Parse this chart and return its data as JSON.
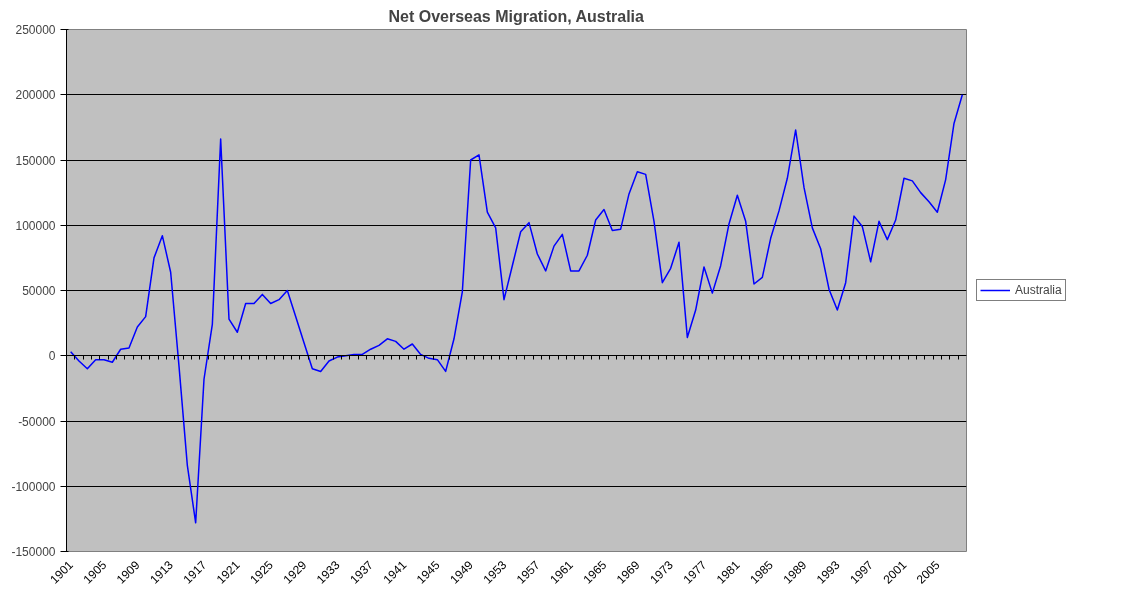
{
  "chart_data": {
    "type": "line",
    "title": "Net Overseas Migration, Australia",
    "categories": [
      "1901",
      null,
      null,
      null,
      "1905",
      null,
      null,
      null,
      "1909",
      null,
      null,
      null,
      "1913",
      null,
      null,
      null,
      "1917",
      null,
      null,
      null,
      "1921",
      null,
      null,
      null,
      "1925",
      null,
      null,
      null,
      "1929",
      null,
      null,
      null,
      "1933",
      null,
      null,
      null,
      "1937",
      null,
      null,
      null,
      "1941",
      null,
      null,
      null,
      "1945",
      null,
      null,
      null,
      "1949",
      null,
      null,
      null,
      "1953",
      null,
      null,
      null,
      "1957",
      null,
      null,
      null,
      "1961",
      null,
      null,
      null,
      "1965",
      null,
      null,
      null,
      "1969",
      null,
      null,
      null,
      "1973",
      null,
      null,
      null,
      "1977",
      null,
      null,
      null,
      "1981",
      null,
      null,
      null,
      "1985",
      null,
      null,
      null,
      "1989",
      null,
      null,
      null,
      "1993",
      null,
      null,
      null,
      "1997",
      null,
      null,
      null,
      "2001",
      null,
      null,
      null,
      "2005",
      null,
      null,
      null
    ],
    "series": [
      {
        "name": "Australia",
        "color": "#0000ff",
        "values": [
          3000,
          -4000,
          -10000,
          -3000,
          -3000,
          -5000,
          5000,
          6000,
          22000,
          30000,
          75000,
          92000,
          64000,
          -8000,
          -84000,
          -128000,
          -18000,
          24000,
          166000,
          28000,
          18000,
          40000,
          40000,
          47000,
          40000,
          43000,
          50000,
          30000,
          10000,
          -10000,
          -12000,
          -4000,
          -1000,
          0,
          1000,
          1000,
          5000,
          8000,
          13000,
          11000,
          5000,
          9000,
          1000,
          -2000,
          -3000,
          -12000,
          13000,
          49000,
          150000,
          154000,
          110000,
          98000,
          43000,
          69000,
          95000,
          102000,
          78000,
          65000,
          84000,
          93000,
          65000,
          65000,
          77000,
          104000,
          112000,
          96000,
          97000,
          124000,
          141000,
          139000,
          103000,
          56000,
          67000,
          87000,
          14000,
          35000,
          68000,
          48000,
          69000,
          101000,
          123000,
          103000,
          55000,
          60000,
          90000,
          111000,
          136000,
          173000,
          129000,
          98000,
          82000,
          51000,
          35000,
          56000,
          107000,
          99000,
          72000,
          103000,
          89000,
          104000,
          136000,
          134000,
          125000,
          118000,
          110000,
          135000,
          178000,
          200000
        ]
      }
    ],
    "ylim": [
      -150000,
      250000
    ],
    "yticks": [
      -150000,
      -100000,
      -50000,
      0,
      50000,
      100000,
      150000,
      200000,
      250000
    ],
    "grid": "y",
    "legend": "right"
  }
}
